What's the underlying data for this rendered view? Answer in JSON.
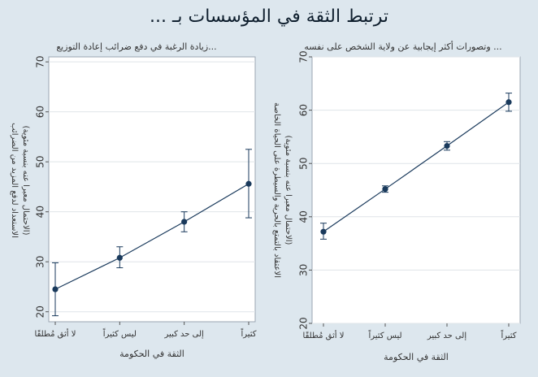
{
  "figure": {
    "title": "ترتبط الثقة في المؤسسات بـ ...",
    "background": "#dde7ee",
    "plot_background": "#ffffff",
    "series_color": "#1a3a5c",
    "grid_color": "#dfe4e8"
  },
  "chart_data": [
    {
      "type": "line",
      "title": "... وتصورات أكثر إيجابية عن ولاية الشخص على نفسه",
      "xlabel": "الثقة في الحكومة",
      "ylabel_line1": "الاعتقاد بالتمتع بالحرية والسيطرة على الحياة الخاصة",
      "ylabel_line2": "(الاحتمال معبرا عنه بنسبة مئوية)",
      "categories": [
        "لا أثق مُطلقًا",
        "ليس كثيراً",
        "إلى حد كبير",
        "كثيراً"
      ],
      "series": [
        {
          "values": [
            37.2,
            45.2,
            53.3,
            61.5
          ],
          "ci_low": [
            35.8,
            44.6,
            52.5,
            59.8
          ],
          "ci_high": [
            38.8,
            45.8,
            54.1,
            63.2
          ]
        }
      ],
      "ylim": [
        20,
        70
      ],
      "yticks": [
        20,
        30,
        40,
        50,
        60,
        70
      ],
      "grid": true,
      "legend": false
    },
    {
      "type": "line",
      "title": "...زيادة الرغبة في دفع ضرائب إعادة التوزيع",
      "xlabel": "الثقة في الحكومة",
      "ylabel_line1": "الاستعداد لدفع المزيد من الضرائب",
      "ylabel_line2": "(الاحتمال معبرا عنه بنسبة مئوية)",
      "categories": [
        "لا أثق مُطلقًا",
        "ليس كثيراً",
        "إلى حد كبير",
        "كثيراً"
      ],
      "series": [
        {
          "values": [
            24.5,
            30.8,
            38.0,
            45.6
          ],
          "ci_low": [
            19.2,
            28.8,
            36.0,
            38.8
          ],
          "ci_high": [
            29.8,
            33.0,
            40.0,
            52.5
          ]
        }
      ],
      "ylim": [
        18,
        71
      ],
      "yticks": [
        20,
        30,
        40,
        50,
        60,
        70
      ],
      "grid": true,
      "legend": false
    }
  ]
}
